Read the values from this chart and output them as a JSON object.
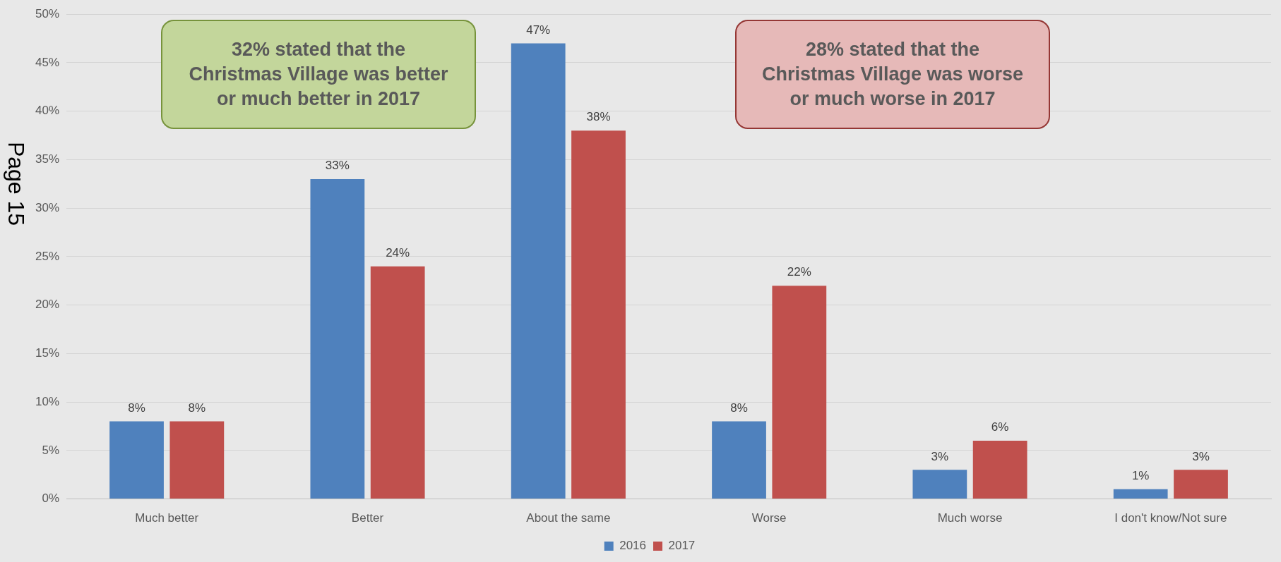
{
  "chart_data": {
    "type": "bar",
    "categories": [
      "Much better",
      "Better",
      "About the same",
      "Worse",
      "Much worse",
      "I don't know/Not sure"
    ],
    "series": [
      {
        "name": "2016",
        "color": "#4f81bd",
        "values": [
          8,
          33,
          47,
          8,
          3,
          1
        ],
        "value_labels": [
          "8%",
          "33%",
          "47%",
          "8%",
          "3%",
          "1%"
        ]
      },
      {
        "name": "2017",
        "color": "#c0504d",
        "values": [
          8,
          24,
          38,
          22,
          6,
          3
        ],
        "value_labels": [
          "8%",
          "24%",
          "38%",
          "22%",
          "6%",
          "3%"
        ]
      }
    ],
    "ylim": [
      0,
      50
    ],
    "yticks": [
      {
        "value": 0,
        "label": "0%"
      },
      {
        "value": 5,
        "label": "5%"
      },
      {
        "value": 10,
        "label": "10%"
      },
      {
        "value": 15,
        "label": "15%"
      },
      {
        "value": 20,
        "label": "20%"
      },
      {
        "value": 25,
        "label": "25%"
      },
      {
        "value": 30,
        "label": "30%"
      },
      {
        "value": 35,
        "label": "35%"
      },
      {
        "value": 40,
        "label": "40%"
      },
      {
        "value": 45,
        "label": "45%"
      },
      {
        "value": 50,
        "label": "50%"
      }
    ],
    "grid": "y",
    "legend": "bottom",
    "annotations": [
      "32% stated that the Christmas Village was better or much better in 2017",
      "28% stated that the Christmas Village was worse or much worse in 2017",
      "Page 15"
    ]
  }
}
